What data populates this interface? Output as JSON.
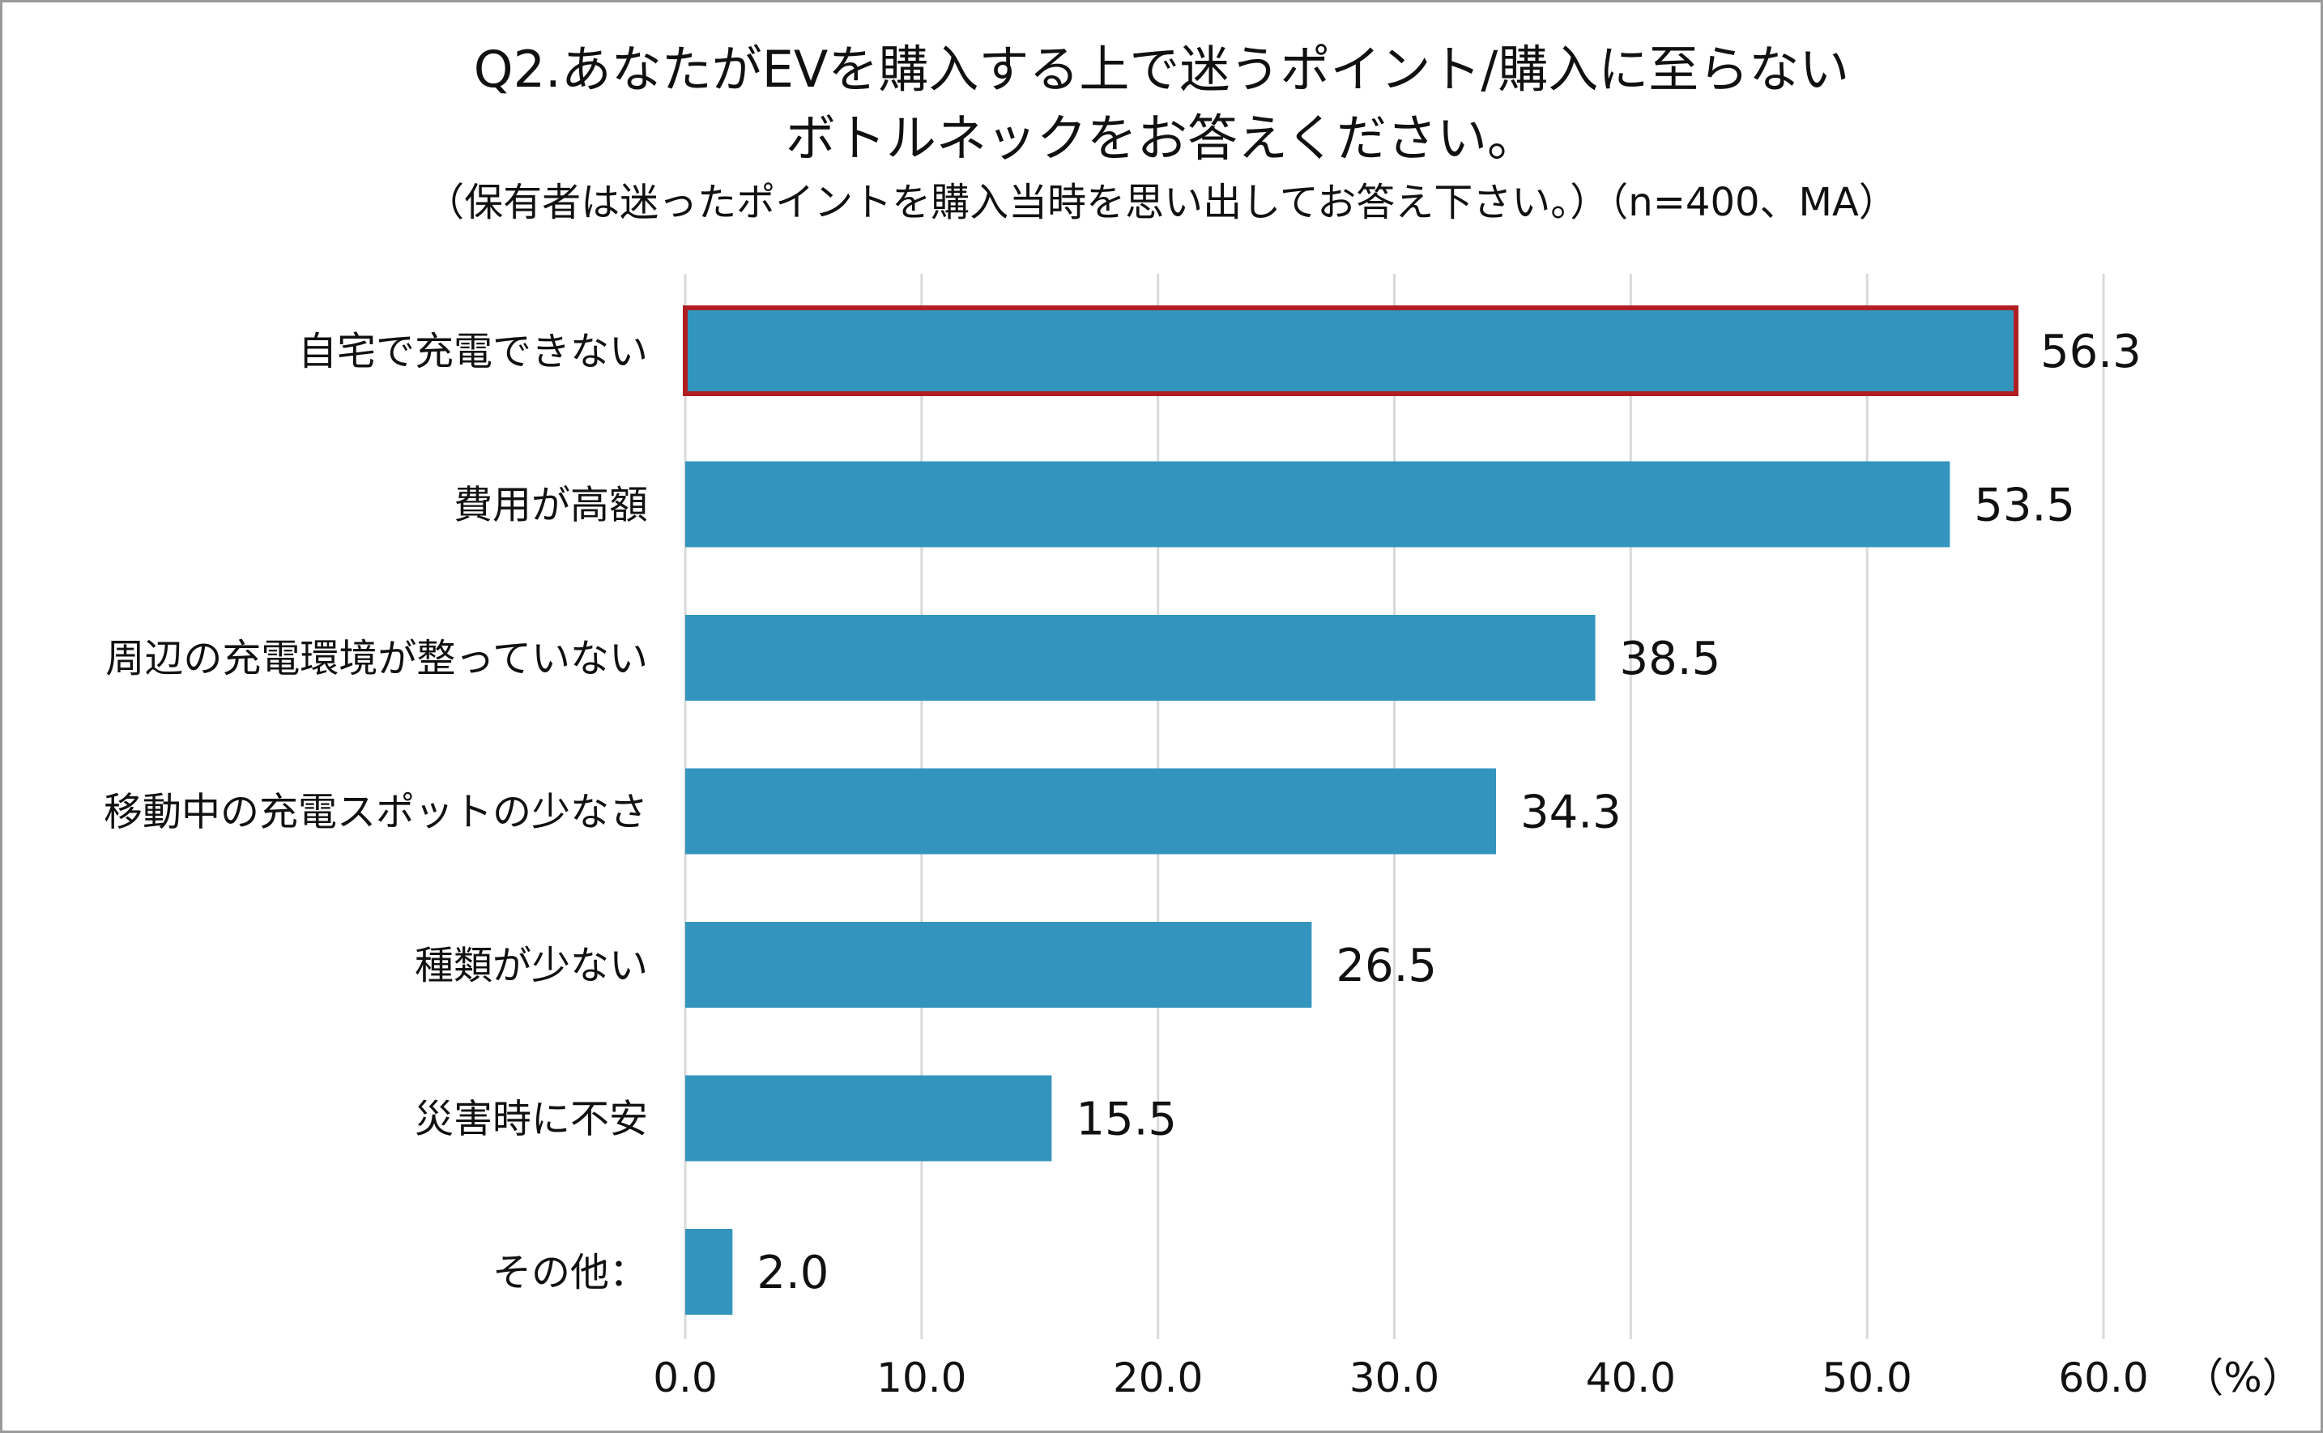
{
  "title_line1": "Q2.あなたがEVを購入する上で迷うポイント/購入に至らない",
  "title_line2": "ボトルネックをお答えください。",
  "subtitle": "（保有者は迷ったポイントを購入当時を思い出してお答え下さい。）（n=400、MA）",
  "colors": {
    "bar": "#3395bd",
    "highlight_border": "#b01e23",
    "grid": "#d9d9d9"
  },
  "chart_data": {
    "type": "bar",
    "orientation": "horizontal",
    "title": "Q2.あなたがEVを購入する上で迷うポイント/購入に至らない ボトルネックをお答えください。",
    "subtitle": "（保有者は迷ったポイントを購入当時を思い出してお答え下さい。）（n=400、MA）",
    "categories": [
      "自宅で充電できない",
      "費用が高額",
      "周辺の充電環境が整っていない",
      "移動中の充電スポットの少なさ",
      "種類が少ない",
      "災害時に不安",
      "その他："
    ],
    "values": [
      56.3,
      53.5,
      38.5,
      34.3,
      26.5,
      15.5,
      2.0
    ],
    "value_labels": [
      "56.3",
      "53.5",
      "38.5",
      "34.3",
      "26.5",
      "15.5",
      "2.0"
    ],
    "highlighted_index": 0,
    "xlim": [
      0,
      60
    ],
    "xticks": [
      0,
      10,
      20,
      30,
      40,
      50,
      60
    ],
    "xtick_labels": [
      "0.0",
      "10.0",
      "20.0",
      "30.0",
      "40.0",
      "50.0",
      "60.0"
    ],
    "x_unit": "（%）",
    "grid": true
  }
}
